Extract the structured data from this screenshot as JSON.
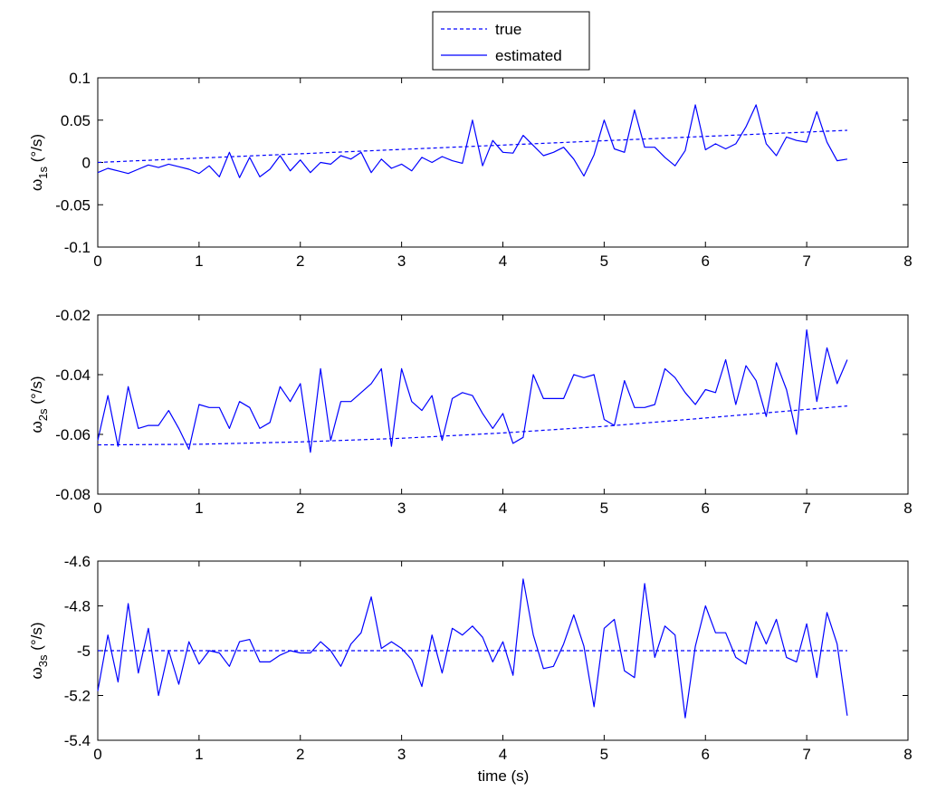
{
  "legend": {
    "true_label": "true",
    "estimated_label": "estimated",
    "placement": "top-center"
  },
  "line_color": "#0000ff",
  "x_axis_label": "time (s)",
  "chart_data": [
    {
      "type": "line",
      "ylabel_main": "ω",
      "ylabel_sub": "1s",
      "ylabel_unit": " (°/s)",
      "xlim": [
        0,
        8
      ],
      "ylim": [
        -0.1,
        0.1
      ],
      "xticks": [
        "0",
        "1",
        "2",
        "3",
        "4",
        "5",
        "6",
        "7",
        "8"
      ],
      "yticks": [
        "0.1",
        "0.05",
        "0",
        "-0.05",
        "-0.1"
      ],
      "ytick_values": [
        0.1,
        0.05,
        0,
        -0.05,
        -0.1
      ],
      "series": [
        {
          "name": "true",
          "style": "dashed",
          "x": [
            0,
            7.4
          ],
          "y": [
            0.0,
            0.038
          ]
        },
        {
          "name": "estimated",
          "style": "solid",
          "x": [
            0,
            0.1,
            0.2,
            0.3,
            0.4,
            0.5,
            0.6,
            0.7,
            0.8,
            0.9,
            1.0,
            1.1,
            1.2,
            1.3,
            1.4,
            1.5,
            1.6,
            1.7,
            1.8,
            1.9,
            2.0,
            2.1,
            2.2,
            2.3,
            2.4,
            2.5,
            2.6,
            2.7,
            2.8,
            2.9,
            3.0,
            3.1,
            3.2,
            3.3,
            3.4,
            3.5,
            3.6,
            3.7,
            3.8,
            3.9,
            4.0,
            4.1,
            4.2,
            4.3,
            4.4,
            4.5,
            4.6,
            4.7,
            4.8,
            4.9,
            5.0,
            5.1,
            5.2,
            5.3,
            5.4,
            5.5,
            5.6,
            5.7,
            5.8,
            5.9,
            6.0,
            6.1,
            6.2,
            6.3,
            6.4,
            6.5,
            6.6,
            6.7,
            6.8,
            6.9,
            7.0,
            7.1,
            7.2,
            7.3,
            7.4
          ],
          "y": [
            -0.012,
            -0.007,
            -0.01,
            -0.013,
            -0.008,
            -0.003,
            -0.006,
            -0.002,
            -0.005,
            -0.008,
            -0.013,
            -0.004,
            -0.017,
            0.012,
            -0.018,
            0.006,
            -0.017,
            -0.008,
            0.008,
            -0.01,
            0.003,
            -0.012,
            0.0,
            -0.002,
            0.008,
            0.004,
            0.012,
            -0.012,
            0.004,
            -0.007,
            -0.002,
            -0.01,
            0.006,
            0.0,
            0.007,
            0.002,
            -0.001,
            0.05,
            -0.004,
            0.026,
            0.012,
            0.011,
            0.032,
            0.02,
            0.008,
            0.012,
            0.018,
            0.004,
            -0.016,
            0.009,
            0.05,
            0.016,
            0.012,
            0.062,
            0.018,
            0.018,
            0.006,
            -0.004,
            0.014,
            0.068,
            0.015,
            0.022,
            0.016,
            0.022,
            0.042,
            0.068,
            0.022,
            0.008,
            0.03,
            0.026,
            0.024,
            0.06,
            0.024,
            0.002,
            0.004
          ]
        }
      ]
    },
    {
      "type": "line",
      "ylabel_main": "ω",
      "ylabel_sub": "2s",
      "ylabel_unit": " (°/s)",
      "xlim": [
        0,
        8
      ],
      "ylim": [
        -0.08,
        -0.02
      ],
      "xticks": [
        "0",
        "1",
        "2",
        "3",
        "4",
        "5",
        "6",
        "7",
        "8"
      ],
      "yticks": [
        "-0.02",
        "-0.04",
        "-0.06",
        "-0.08"
      ],
      "ytick_values": [
        -0.02,
        -0.04,
        -0.06,
        -0.08
      ],
      "series": [
        {
          "name": "true",
          "style": "dashed",
          "x": [
            0,
            1.0,
            2.0,
            3.0,
            4.0,
            5.0,
            6.0,
            7.4
          ],
          "y": [
            -0.0635,
            -0.0633,
            -0.0625,
            -0.0613,
            -0.0595,
            -0.0573,
            -0.0545,
            -0.0505
          ]
        },
        {
          "name": "estimated",
          "style": "solid",
          "x": [
            0,
            0.1,
            0.2,
            0.3,
            0.4,
            0.5,
            0.6,
            0.7,
            0.8,
            0.9,
            1.0,
            1.1,
            1.2,
            1.3,
            1.4,
            1.5,
            1.6,
            1.7,
            1.8,
            1.9,
            2.0,
            2.1,
            2.2,
            2.3,
            2.4,
            2.5,
            2.6,
            2.7,
            2.8,
            2.9,
            3.0,
            3.1,
            3.2,
            3.3,
            3.4,
            3.5,
            3.6,
            3.7,
            3.8,
            3.9,
            4.0,
            4.1,
            4.2,
            4.3,
            4.4,
            4.5,
            4.6,
            4.7,
            4.8,
            4.9,
            5.0,
            5.1,
            5.2,
            5.3,
            5.4,
            5.5,
            5.6,
            5.7,
            5.8,
            5.9,
            6.0,
            6.1,
            6.2,
            6.3,
            6.4,
            6.5,
            6.6,
            6.7,
            6.8,
            6.9,
            7.0,
            7.1,
            7.2,
            7.3,
            7.4
          ],
          "y": [
            -0.062,
            -0.047,
            -0.064,
            -0.044,
            -0.058,
            -0.057,
            -0.057,
            -0.052,
            -0.058,
            -0.065,
            -0.05,
            -0.051,
            -0.051,
            -0.058,
            -0.049,
            -0.051,
            -0.058,
            -0.056,
            -0.044,
            -0.049,
            -0.043,
            -0.066,
            -0.038,
            -0.062,
            -0.049,
            -0.049,
            -0.046,
            -0.043,
            -0.038,
            -0.064,
            -0.038,
            -0.049,
            -0.052,
            -0.047,
            -0.062,
            -0.048,
            -0.046,
            -0.047,
            -0.053,
            -0.058,
            -0.053,
            -0.063,
            -0.061,
            -0.04,
            -0.048,
            -0.048,
            -0.048,
            -0.04,
            -0.041,
            -0.04,
            -0.055,
            -0.057,
            -0.042,
            -0.051,
            -0.051,
            -0.05,
            -0.038,
            -0.041,
            -0.046,
            -0.05,
            -0.045,
            -0.046,
            -0.035,
            -0.05,
            -0.037,
            -0.042,
            -0.054,
            -0.036,
            -0.045,
            -0.06,
            -0.025,
            -0.049,
            -0.031,
            -0.043,
            -0.035
          ]
        }
      ]
    },
    {
      "type": "line",
      "ylabel_main": "ω",
      "ylabel_sub": "3s",
      "ylabel_unit": " (°/s)",
      "xlim": [
        0,
        8
      ],
      "ylim": [
        -5.4,
        -4.6
      ],
      "xticks": [
        "0",
        "1",
        "2",
        "3",
        "4",
        "5",
        "6",
        "7",
        "8"
      ],
      "yticks": [
        "-4.6",
        "-4.8",
        "-5",
        "-5.2",
        "-5.4"
      ],
      "ytick_values": [
        -4.6,
        -4.8,
        -5.0,
        -5.2,
        -5.4
      ],
      "series": [
        {
          "name": "true",
          "style": "dashed",
          "x": [
            0,
            7.4
          ],
          "y": [
            -5.0,
            -5.0
          ]
        },
        {
          "name": "estimated",
          "style": "solid",
          "x": [
            0,
            0.1,
            0.2,
            0.3,
            0.4,
            0.5,
            0.6,
            0.7,
            0.8,
            0.9,
            1.0,
            1.1,
            1.2,
            1.3,
            1.4,
            1.5,
            1.6,
            1.7,
            1.8,
            1.9,
            2.0,
            2.1,
            2.2,
            2.3,
            2.4,
            2.5,
            2.6,
            2.7,
            2.8,
            2.9,
            3.0,
            3.1,
            3.2,
            3.3,
            3.4,
            3.5,
            3.6,
            3.7,
            3.8,
            3.9,
            4.0,
            4.1,
            4.2,
            4.3,
            4.4,
            4.5,
            4.6,
            4.7,
            4.8,
            4.9,
            5.0,
            5.1,
            5.2,
            5.3,
            5.4,
            5.5,
            5.6,
            5.7,
            5.8,
            5.9,
            6.0,
            6.1,
            6.2,
            6.3,
            6.4,
            6.5,
            6.6,
            6.7,
            6.8,
            6.9,
            7.0,
            7.1,
            7.2,
            7.3,
            7.4
          ],
          "y": [
            -5.18,
            -4.93,
            -5.14,
            -4.79,
            -5.1,
            -4.9,
            -5.2,
            -5.0,
            -5.15,
            -4.96,
            -5.06,
            -5.0,
            -5.01,
            -5.07,
            -4.96,
            -4.95,
            -5.05,
            -5.05,
            -5.02,
            -5.0,
            -5.01,
            -5.01,
            -4.96,
            -5.0,
            -5.07,
            -4.97,
            -4.92,
            -4.76,
            -4.99,
            -4.96,
            -4.99,
            -5.04,
            -5.16,
            -4.93,
            -5.1,
            -4.9,
            -4.93,
            -4.89,
            -4.94,
            -5.05,
            -4.96,
            -5.11,
            -4.68,
            -4.93,
            -5.08,
            -5.07,
            -4.97,
            -4.84,
            -4.98,
            -5.25,
            -4.9,
            -4.86,
            -5.09,
            -5.12,
            -4.7,
            -5.03,
            -4.89,
            -4.93,
            -5.3,
            -4.98,
            -4.8,
            -4.92,
            -4.92,
            -5.03,
            -5.06,
            -4.87,
            -4.97,
            -4.86,
            -5.03,
            -5.05,
            -4.88,
            -5.12,
            -4.83,
            -4.97,
            -5.29
          ]
        }
      ]
    }
  ]
}
